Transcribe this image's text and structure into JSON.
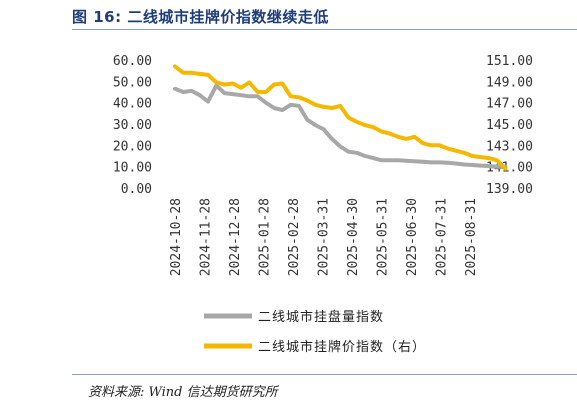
{
  "title": "图 16:  二线城市挂牌价指数继续走低",
  "source": "资料来源:  Wind  信达期货研究所",
  "chart_data": {
    "type": "line",
    "title": "二线城市挂牌价指数继续走低",
    "ylim_left": [
      0,
      60
    ],
    "ylim_right": [
      139,
      151
    ],
    "yticks_left": [
      "0.00",
      "10.00",
      "20.00",
      "30.00",
      "40.00",
      "50.00",
      "60.00"
    ],
    "yticks_right": [
      "139.00",
      "141.00",
      "143.00",
      "145.00",
      "147.00",
      "149.00",
      "151.00"
    ],
    "xticks": [
      "2024-10-28",
      "2024-11-28",
      "2024-12-28",
      "2025-01-28",
      "2025-02-28",
      "2025-03-31",
      "2025-04-30",
      "2025-05-31",
      "2025-06-30",
      "2025-07-31",
      "2025-08-31"
    ],
    "grid": false,
    "legend_position": "bottom",
    "x": [
      0,
      0.28,
      0.56,
      0.84,
      1.12,
      1.4,
      1.68,
      1.96,
      2.24,
      2.52,
      2.8,
      3.08,
      3.36,
      3.64,
      3.92,
      4.2,
      4.48,
      4.76,
      5.04,
      5.32,
      5.6,
      5.88,
      6.16,
      6.44,
      6.72,
      7.0,
      7.28,
      7.56,
      7.84,
      8.12,
      8.4,
      8.68,
      8.96,
      9.24,
      9.52,
      9.8,
      10.08,
      10.36,
      10.64,
      10.92,
      11.2
    ],
    "series": [
      {
        "name": "二线城市挂盘量指数",
        "axis": "left",
        "color": "#a8a8a8",
        "values": [
          46.5,
          45.0,
          45.5,
          43.5,
          40.5,
          48.0,
          44.5,
          44.0,
          43.5,
          43.0,
          43.0,
          40.0,
          37.5,
          36.5,
          39.0,
          38.5,
          32.0,
          29.5,
          27.5,
          23.0,
          19.5,
          17.0,
          16.5,
          15.0,
          14.0,
          13.0,
          13.0,
          13.0,
          12.8,
          12.5,
          12.3,
          12.0,
          12.0,
          11.8,
          11.5,
          11.0,
          10.8,
          10.5,
          10.3,
          10.0,
          9.8
        ]
      },
      {
        "name": "二线城市挂牌价指数（右）",
        "axis": "right",
        "color": "#f5b800",
        "values": [
          150.4,
          149.8,
          149.8,
          149.7,
          149.6,
          148.9,
          148.7,
          148.8,
          148.4,
          148.9,
          148.0,
          148.0,
          148.7,
          148.8,
          147.6,
          147.5,
          147.2,
          146.8,
          146.6,
          146.5,
          146.7,
          145.6,
          145.2,
          144.9,
          144.7,
          144.3,
          144.1,
          143.8,
          143.6,
          143.8,
          143.2,
          143.0,
          143.0,
          142.7,
          142.5,
          142.3,
          142.0,
          141.9,
          141.8,
          141.6,
          140.8
        ]
      }
    ]
  }
}
